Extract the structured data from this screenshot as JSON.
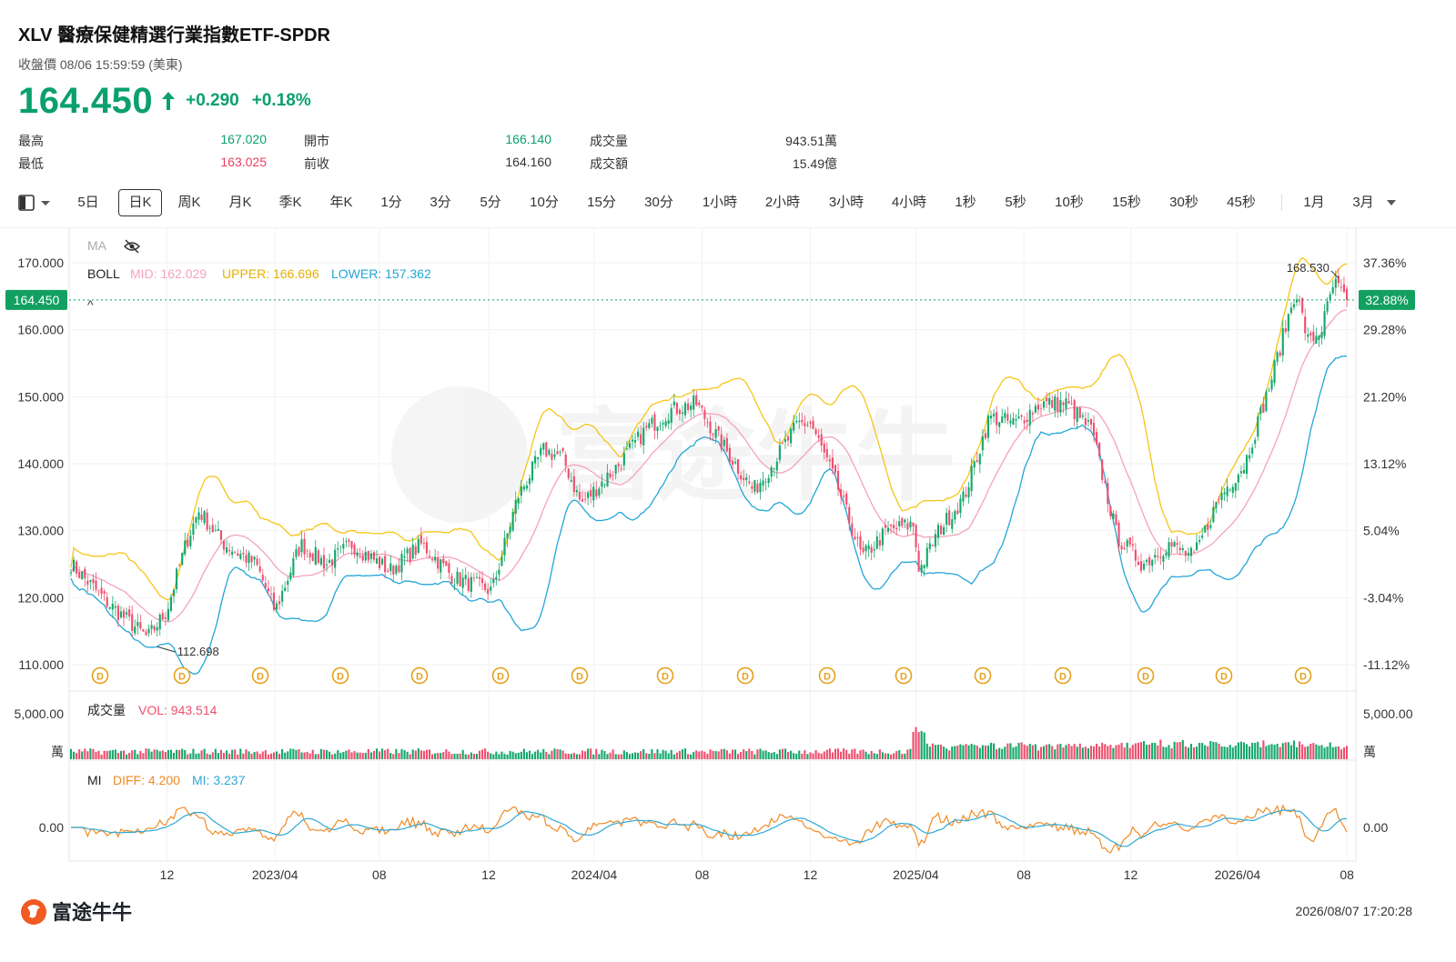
{
  "header": {
    "title": "XLV  醫療保健精選行業指數ETF-SPDR",
    "subtitle": "收盤價 08/06 15:59:59 (美東)",
    "price": "164.450",
    "change": "+0.290",
    "change_pct": "+0.18%"
  },
  "stats": {
    "high_label": "最高",
    "high_value": "167.020",
    "low_label": "最低",
    "low_value": "163.025",
    "open_label": "開市",
    "open_value": "166.140",
    "prev_label": "前收",
    "prev_value": "164.160",
    "volume_label": "成交量",
    "volume_value": "943.51萬",
    "turnover_label": "成交額",
    "turnover_value": "15.49億"
  },
  "toolbar": {
    "periods": [
      "5日",
      "日K",
      "周K",
      "月K",
      "季K",
      "年K",
      "1分",
      "3分",
      "5分",
      "10分",
      "15分",
      "30分",
      "1小時",
      "2小時",
      "3小時",
      "4小時",
      "1秒",
      "5秒",
      "10秒",
      "15秒",
      "30秒",
      "45秒"
    ],
    "active": "日K",
    "extra": [
      "1月",
      "3月"
    ],
    "layout_icon": "layout-panel-icon",
    "dropdown_icon": "chevron-down-icon"
  },
  "chart_data": {
    "type": "candlestick",
    "symbol": "XLV",
    "price_axis": {
      "ylim": [
        108,
        172
      ],
      "ticks": [
        "170.000",
        "160.000",
        "150.000",
        "140.000",
        "130.000",
        "120.000",
        "110.000"
      ],
      "tick_values": [
        170,
        160,
        150,
        140,
        130,
        120,
        110
      ]
    },
    "percent_axis": {
      "ticks": [
        "37.36%",
        "29.28%",
        "21.20%",
        "13.12%",
        "5.04%",
        "-3.04%",
        "-11.12%"
      ],
      "tick_values": [
        170,
        160,
        150,
        140,
        130,
        120,
        110
      ]
    },
    "current_price": 164.45,
    "current_price_label": "164.450",
    "current_percent_label": "32.88%",
    "annotations": [
      {
        "text": "168.530",
        "value": 168.53,
        "kind": "high"
      },
      {
        "text": "112.698",
        "value": 112.698,
        "kind": "low"
      }
    ],
    "x_ticks": [
      "12",
      "2023/04",
      "08",
      "12",
      "2024/04",
      "08",
      "12",
      "2025/04",
      "08",
      "12",
      "2026/04",
      "08"
    ],
    "dividend_marker": "D",
    "dividend_count": 16,
    "main_legend": {
      "ma": "MA",
      "boll": "BOLL",
      "mid": "MID: 162.029",
      "upper": "UPPER: 166.696",
      "lower": "LOWER: 157.362"
    },
    "close_path": {
      "x": [
        0,
        0.03,
        0.06,
        0.075,
        0.09,
        0.1,
        0.12,
        0.145,
        0.16,
        0.18,
        0.2,
        0.22,
        0.25,
        0.275,
        0.3,
        0.33,
        0.35,
        0.37,
        0.385,
        0.4,
        0.43,
        0.45,
        0.47,
        0.49,
        0.51,
        0.535,
        0.55,
        0.57,
        0.58,
        0.6,
        0.62,
        0.64,
        0.66,
        0.665,
        0.68,
        0.7,
        0.72,
        0.74,
        0.76,
        0.78,
        0.8,
        0.82,
        0.84,
        0.86,
        0.88,
        0.9,
        0.92,
        0.94,
        0.95,
        0.96,
        0.97,
        0.98,
        0.99,
        1.0
      ],
      "y": [
        125,
        119,
        114,
        118,
        128,
        133,
        128,
        125,
        118,
        128,
        125,
        128,
        124,
        128,
        123,
        121,
        135,
        142,
        141,
        134,
        140,
        145,
        148,
        149,
        143,
        136,
        140,
        146,
        146,
        137,
        126,
        130,
        131,
        124,
        130,
        135,
        147,
        146,
        149,
        149,
        145,
        129,
        125,
        128,
        126,
        135,
        140,
        152,
        159,
        166,
        158,
        160,
        167,
        164.45
      ]
    },
    "volume": {
      "legend_title": "成交量",
      "legend_value": "VOL: 943.514",
      "axis_label": "5,000.00",
      "unit": "萬"
    },
    "mi": {
      "legend_title": "MI",
      "diff": "DIFF: 4.200",
      "mi": "MI: 3.237",
      "axis_label": "0.00"
    },
    "colors": {
      "up": "#14a86b",
      "down": "#ef4f6e",
      "upper": "#f5c518",
      "lower": "#22a6d8",
      "mid": "#f4a3bd",
      "diff": "#f08a24",
      "mi_line": "#2ea8d6",
      "price_tag": "#12a061"
    }
  },
  "footer": {
    "brand": "富途牛牛",
    "timestamp": "2026/08/07 17:20:28",
    "watermark": "富途牛牛"
  }
}
